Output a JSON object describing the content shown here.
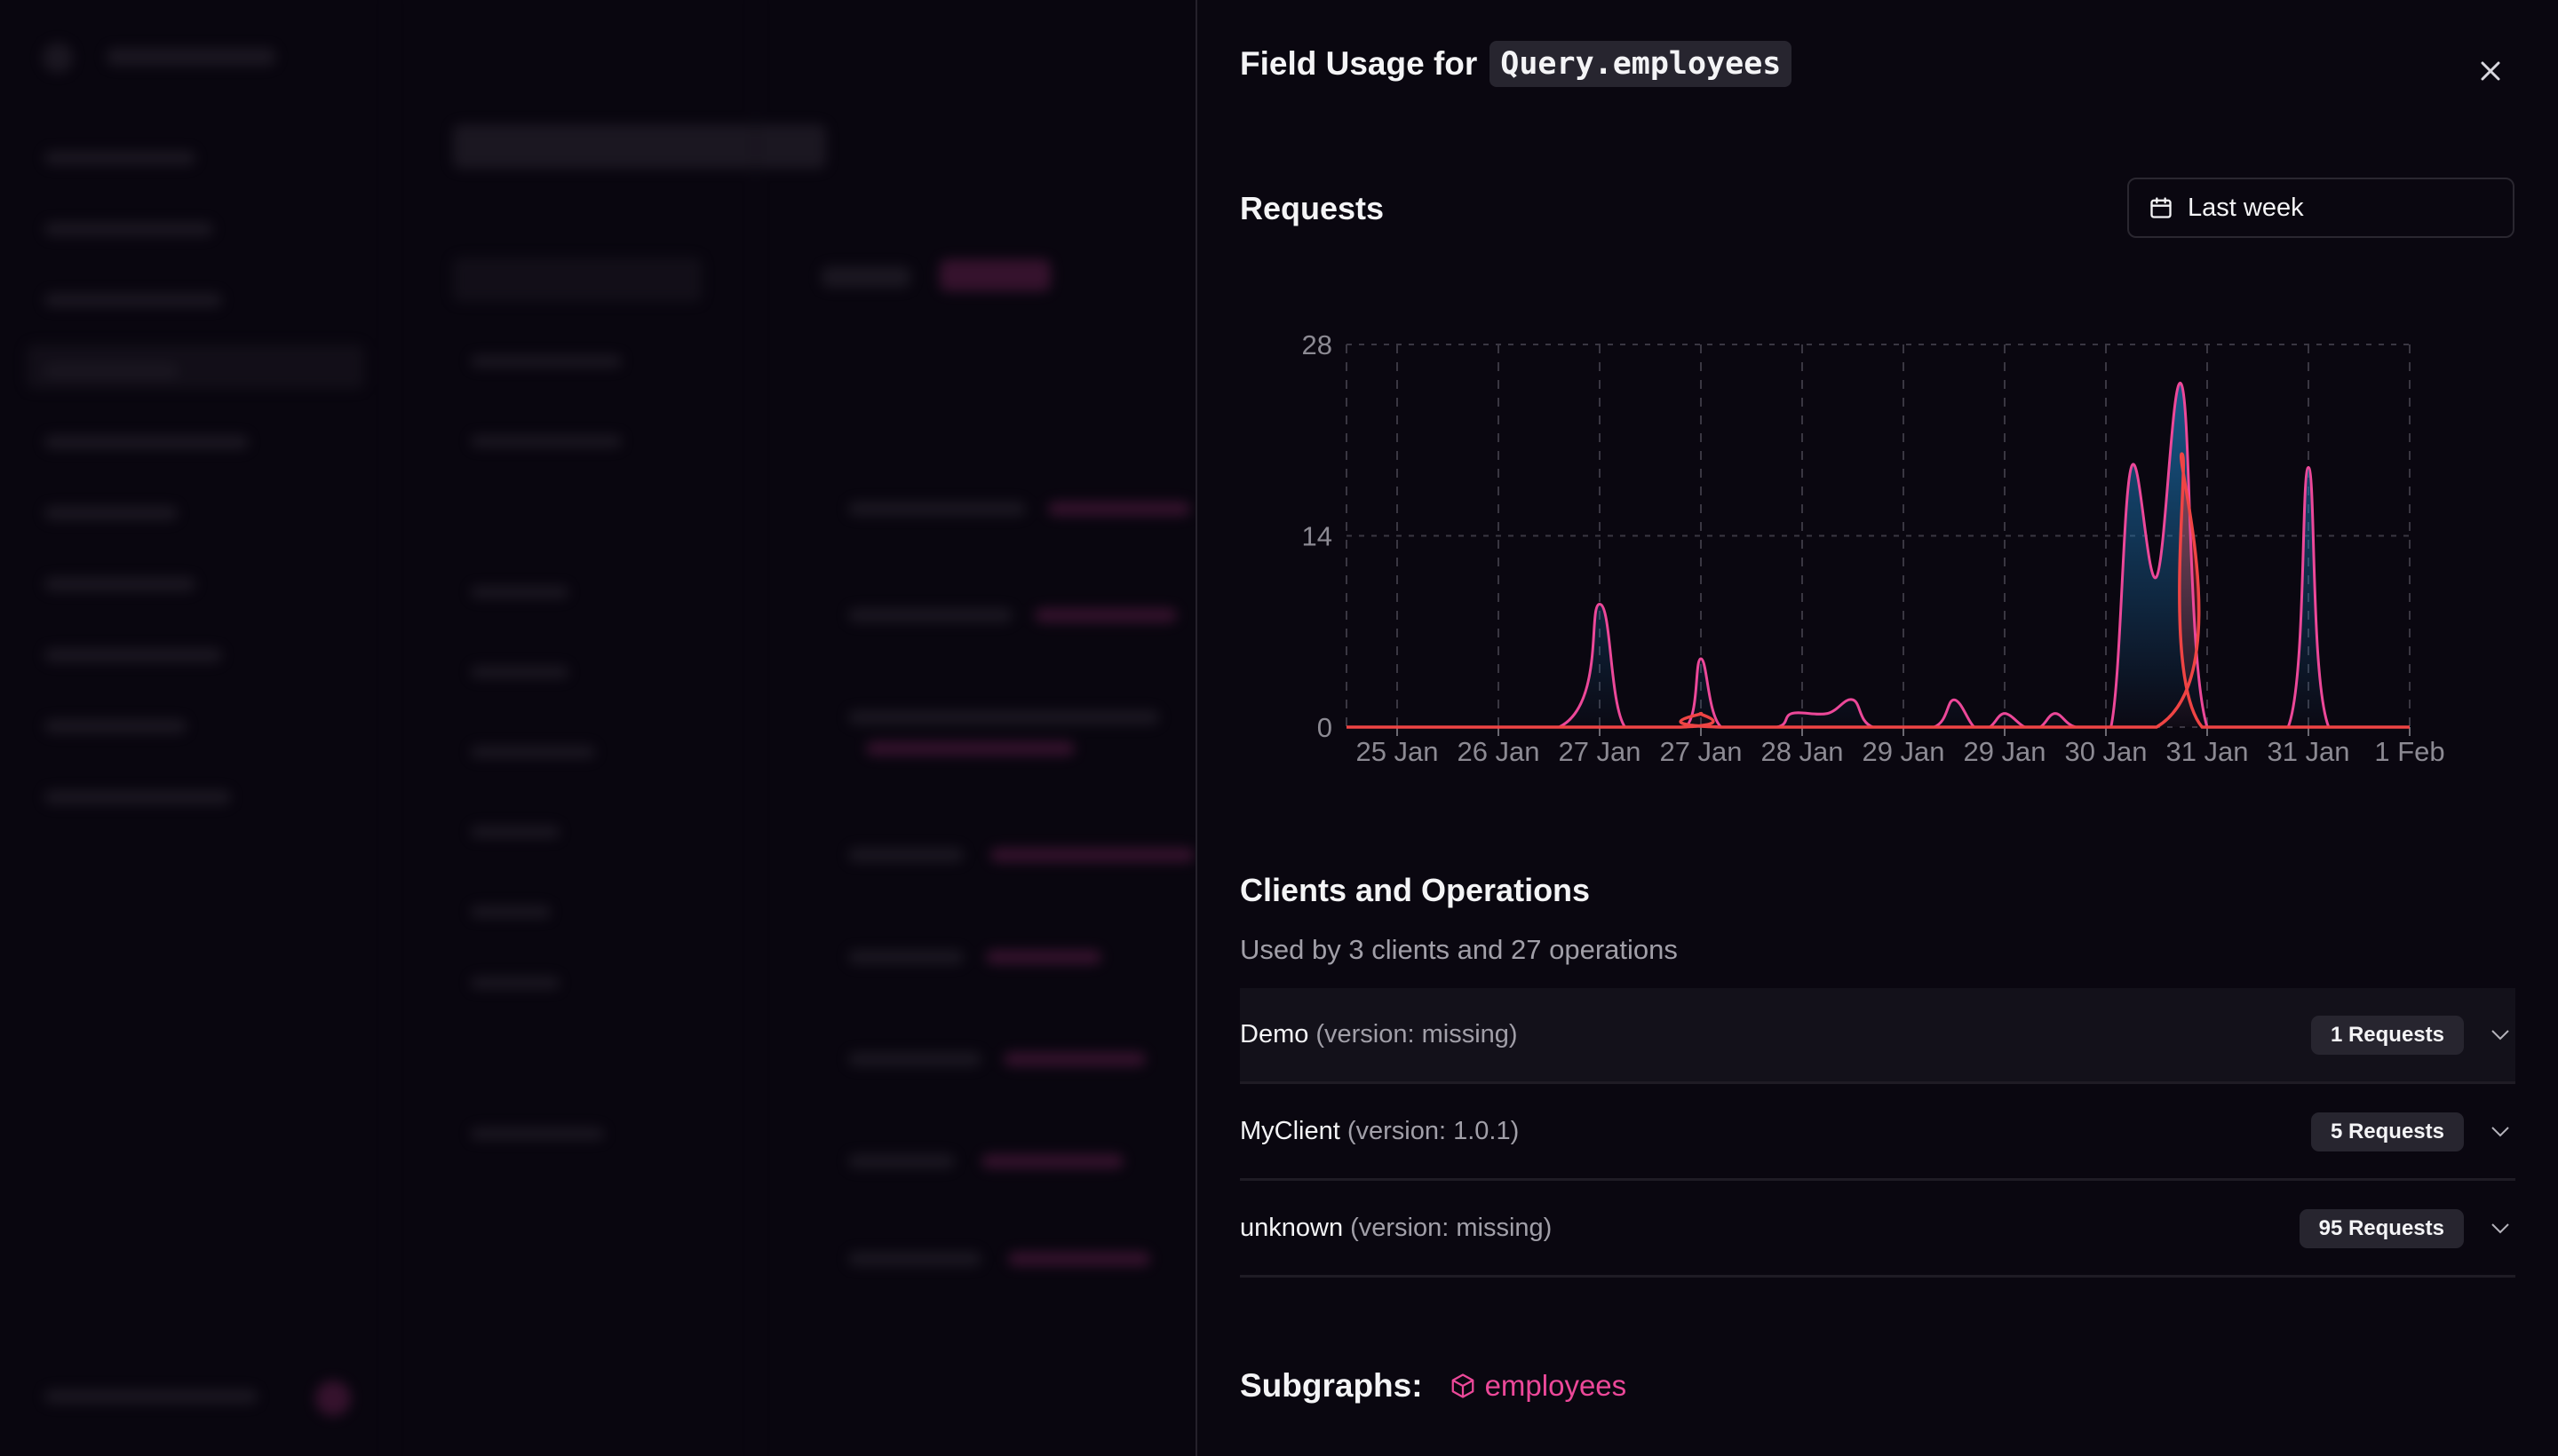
{
  "panel": {
    "title_prefix": "Field Usage for",
    "field_name": "Query.employees",
    "close_icon": "close-icon"
  },
  "requests": {
    "heading": "Requests",
    "date_range": "Last week",
    "date_icon": "calendar-icon"
  },
  "chart_data": {
    "type": "area",
    "title": "Requests",
    "xlabel": "",
    "ylabel": "",
    "ylim": [
      0,
      28
    ],
    "xlim": [
      0,
      21
    ],
    "y_ticks": [
      0,
      14,
      28
    ],
    "x_ticks": [
      {
        "x": 1,
        "label": "25 Jan"
      },
      {
        "x": 3,
        "label": "26 Jan"
      },
      {
        "x": 5,
        "label": "27 Jan"
      },
      {
        "x": 7,
        "label": "27 Jan"
      },
      {
        "x": 9,
        "label": "28 Jan"
      },
      {
        "x": 11,
        "label": "29 Jan"
      },
      {
        "x": 13,
        "label": "29 Jan"
      },
      {
        "x": 15,
        "label": "30 Jan"
      },
      {
        "x": 17,
        "label": "31 Jan"
      },
      {
        "x": 19,
        "label": "31 Jan"
      },
      {
        "x": 21,
        "label": "1 Feb"
      }
    ],
    "grid": true,
    "series": [
      {
        "name": "requests",
        "line_color": "#ec4899",
        "fill_color": "#1d7fc4",
        "points": [
          [
            0,
            0
          ],
          [
            4.2,
            0
          ],
          [
            5,
            9
          ],
          [
            5.5,
            0
          ],
          [
            6.7,
            0
          ],
          [
            7,
            5
          ],
          [
            7.4,
            0
          ],
          [
            8.5,
            0
          ],
          [
            8.8,
            1
          ],
          [
            9.5,
            1
          ],
          [
            10,
            2
          ],
          [
            10.4,
            0
          ],
          [
            11.6,
            0
          ],
          [
            12,
            2
          ],
          [
            12.4,
            0
          ],
          [
            12.7,
            0
          ],
          [
            13,
            1
          ],
          [
            13.4,
            0
          ],
          [
            13.7,
            0
          ],
          [
            14,
            1
          ],
          [
            14.4,
            0
          ],
          [
            15.1,
            0
          ],
          [
            15.5,
            19
          ],
          [
            16,
            11
          ],
          [
            16.5,
            25
          ],
          [
            17,
            0
          ],
          [
            18.6,
            0
          ],
          [
            19,
            19
          ],
          [
            19.4,
            0
          ],
          [
            21,
            0
          ]
        ]
      },
      {
        "name": "errors",
        "line_color": "#ef4444",
        "fill_color": "#ef4444",
        "points": [
          [
            0,
            0
          ],
          [
            6.6,
            0
          ],
          [
            7,
            1
          ],
          [
            7.4,
            0
          ],
          [
            16,
            0
          ],
          [
            16.5,
            20
          ],
          [
            16.9,
            0
          ],
          [
            21,
            0
          ]
        ]
      }
    ]
  },
  "clients": {
    "heading": "Clients and Operations",
    "summary": "Used by 3 clients and 27 operations",
    "rows": [
      {
        "name": "Demo",
        "version": "(version: missing)",
        "requests": "1 Requests"
      },
      {
        "name": "MyClient",
        "version": "(version: 1.0.1)",
        "requests": "5 Requests"
      },
      {
        "name": "unknown",
        "version": "(version: missing)",
        "requests": "95 Requests"
      }
    ]
  },
  "subgraphs": {
    "label": "Subgraphs:",
    "items": [
      {
        "name": "employees"
      }
    ]
  }
}
